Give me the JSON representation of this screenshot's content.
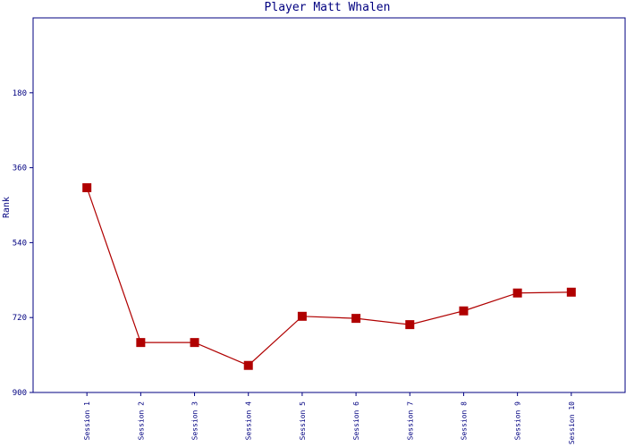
{
  "chart_data": {
    "type": "line",
    "title": "Player Matt Whalen",
    "y_label": "Rank",
    "categories": [
      "Session 1",
      "Session 2",
      "Session 3",
      "Session 4",
      "Session 5",
      "Session 6",
      "Session 7",
      "Session 8",
      "Session 9",
      "Session 10"
    ],
    "series": [
      {
        "name": "Rank",
        "color": "#b00000",
        "values": [
          408,
          780,
          780,
          835,
          717,
          722,
          737,
          704,
          661,
          659
        ]
      }
    ],
    "ylim": [
      900,
      0
    ],
    "yticks": [
      180,
      360,
      540,
      720,
      900
    ],
    "grid": false
  }
}
